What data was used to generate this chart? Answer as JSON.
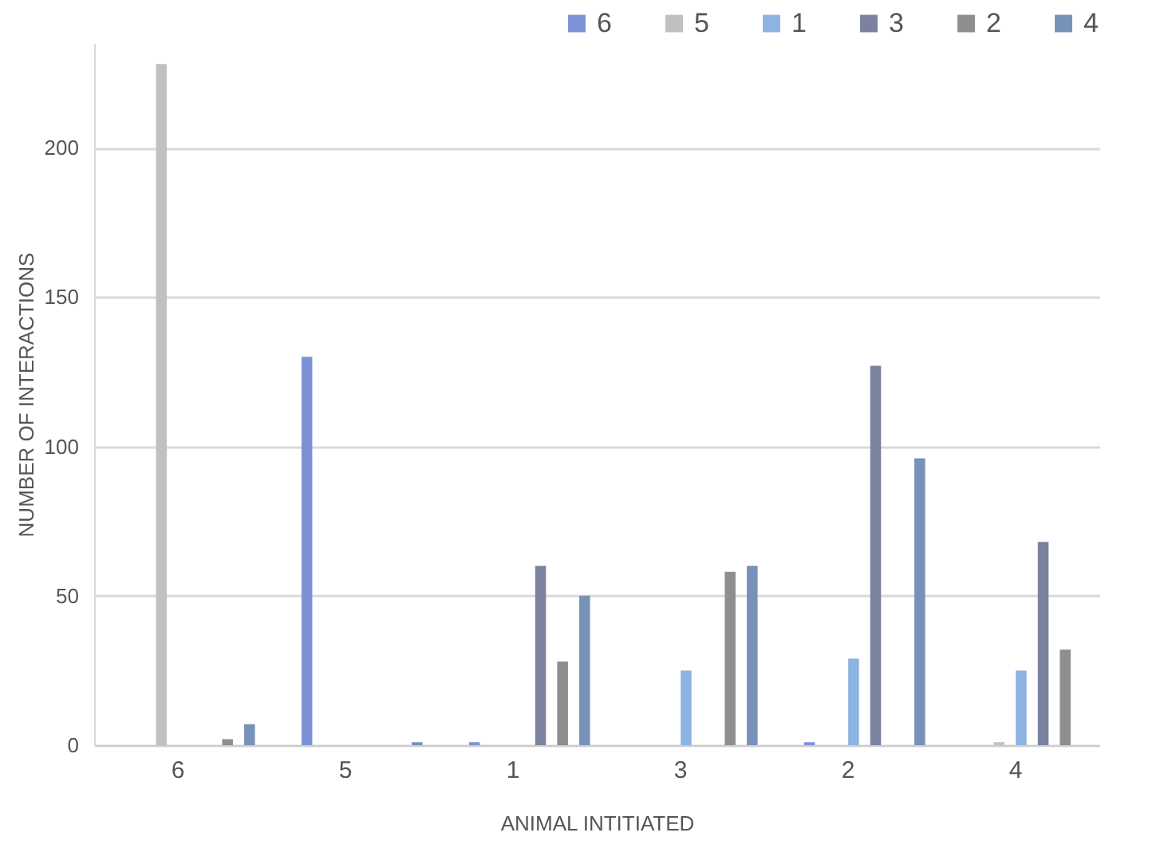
{
  "chart_data": {
    "type": "bar",
    "xlabel": "ANIMAL INTITIATED",
    "ylabel": "NUMBER OF INTERACTIONS",
    "categories": [
      "6",
      "5",
      "1",
      "3",
      "2",
      "4"
    ],
    "series": [
      {
        "name": "6",
        "color": "#7b93d6",
        "values": [
          0,
          130,
          1,
          0,
          1,
          0
        ]
      },
      {
        "name": "5",
        "color": "#c0c0c0",
        "values": [
          228,
          0,
          0,
          0,
          0,
          1
        ]
      },
      {
        "name": "1",
        "color": "#8db3e2",
        "values": [
          0,
          0,
          0,
          25,
          29,
          25
        ]
      },
      {
        "name": "3",
        "color": "#7b829f",
        "values": [
          0,
          0,
          60,
          0,
          127,
          68
        ]
      },
      {
        "name": "2",
        "color": "#8e8e8e",
        "values": [
          2,
          0,
          28,
          58,
          0,
          32
        ]
      },
      {
        "name": "4",
        "color": "#7891b8",
        "values": [
          7,
          1,
          50,
          60,
          96,
          0
        ]
      }
    ],
    "ylim": [
      0,
      235
    ],
    "yticks": [
      0,
      50,
      100,
      150,
      200
    ],
    "grid": "y",
    "legend": "top right"
  }
}
